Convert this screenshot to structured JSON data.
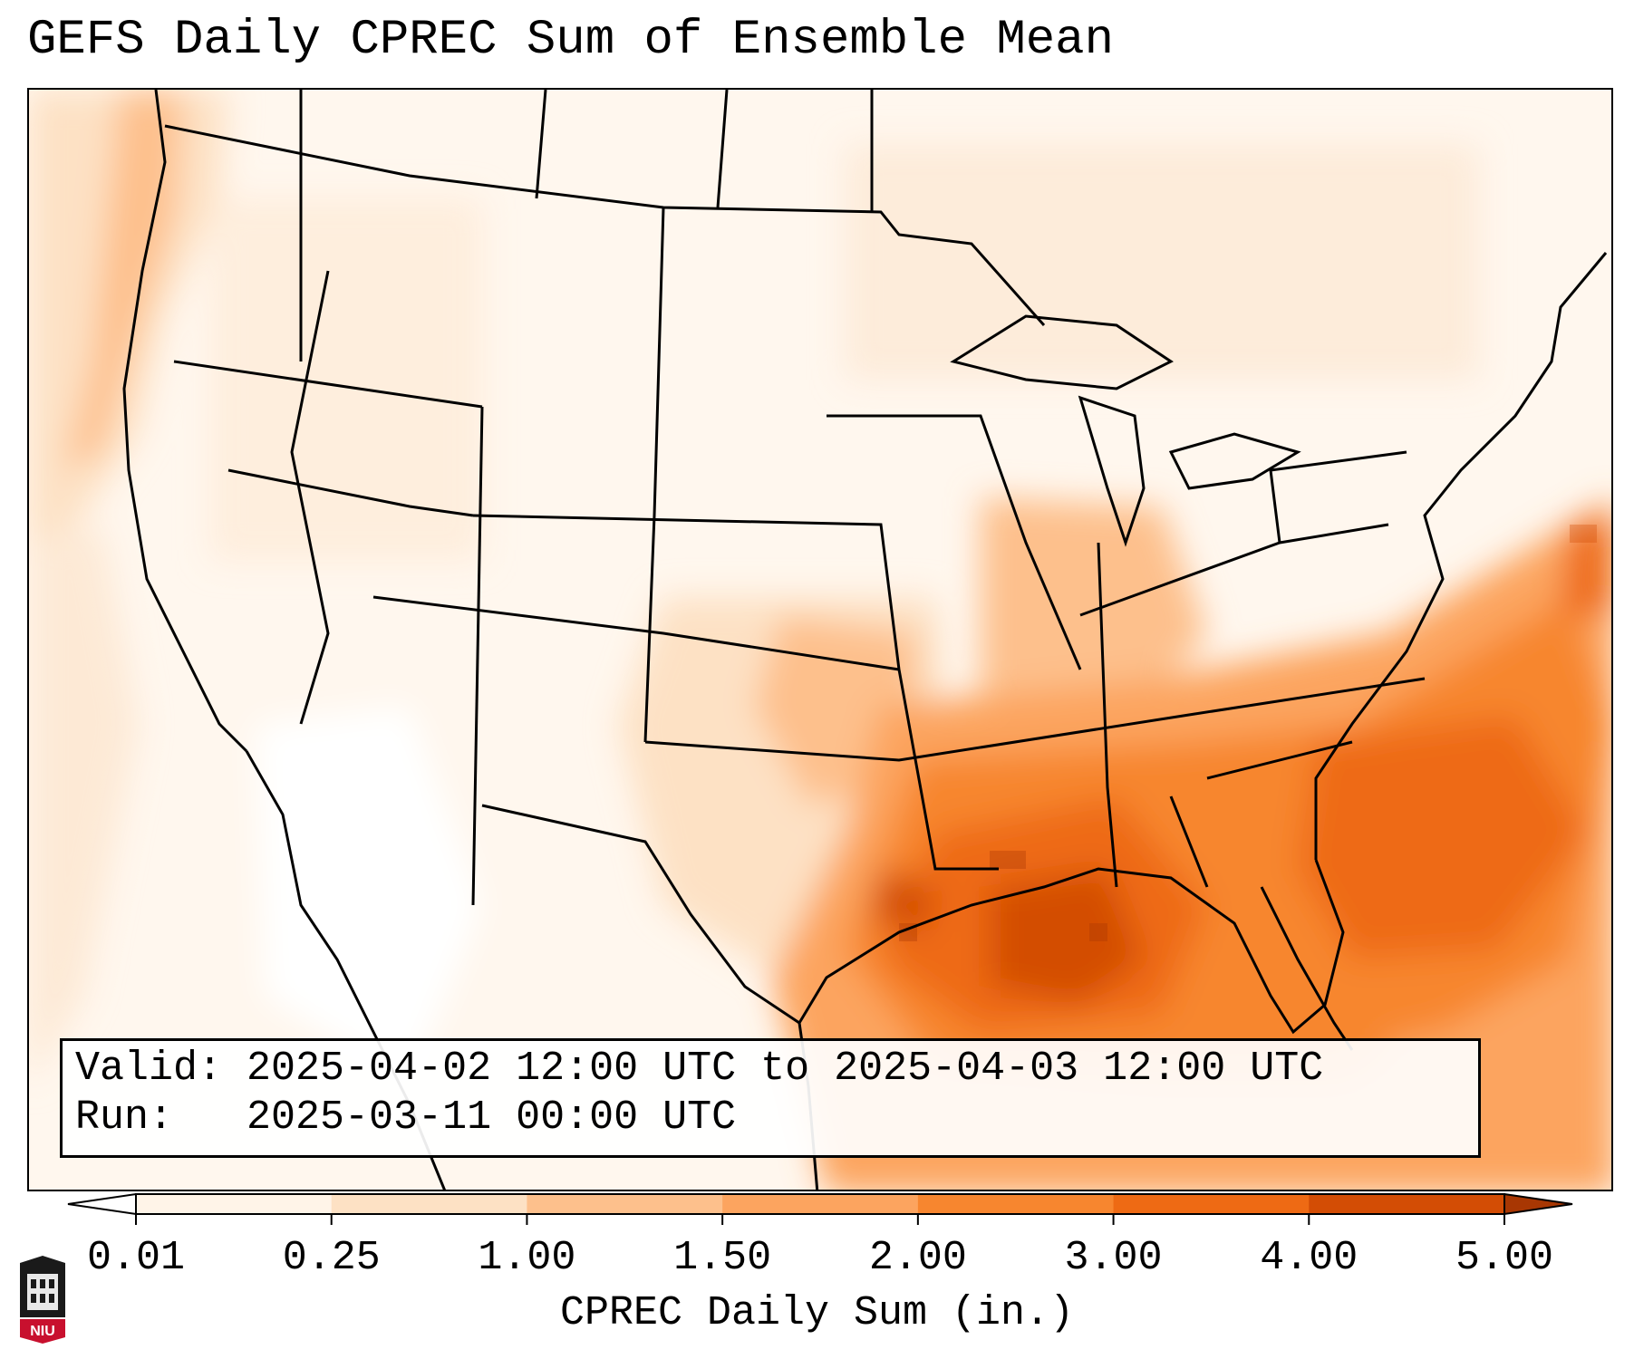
{
  "title": "GEFS Daily CPREC Sum of Ensemble Mean",
  "info": {
    "valid_line": "Valid: 2025-04-02 12:00 UTC to 2025-04-03 12:00 UTC",
    "run_line": "Run:   2025-03-11 00:00 UTC"
  },
  "colorbar": {
    "label": "CPREC Daily Sum (in.)",
    "ticks": [
      "0.01",
      "0.25",
      "1.00",
      "1.50",
      "2.00",
      "3.00",
      "4.00",
      "5.00"
    ],
    "colors": [
      "#fff4e8",
      "#fde1c4",
      "#fdc08c",
      "#fca45f",
      "#f7862f",
      "#ee6a14",
      "#d34d05",
      "#a83703"
    ],
    "extend": "both"
  },
  "logo": {
    "text": "NIU",
    "icon": "university-tower-logo"
  },
  "map": {
    "projection": "lambert-conformal-conus",
    "field": "CPREC daily sum",
    "max_region": "Gulf Coast / Southeast US"
  }
}
